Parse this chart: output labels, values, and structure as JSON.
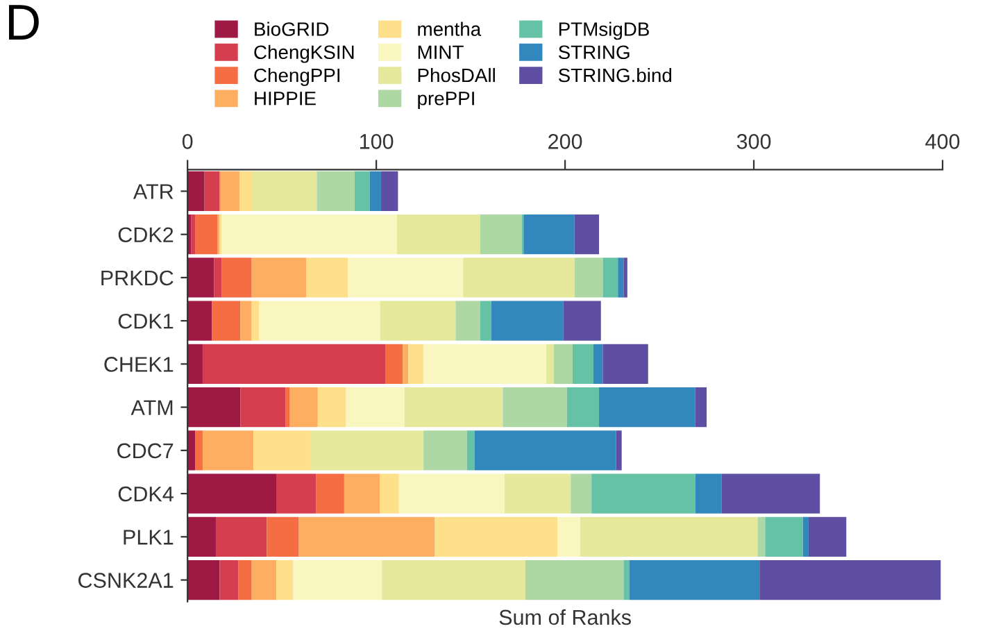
{
  "chart_data": {
    "type": "bar",
    "orientation": "horizontal",
    "stacked": true,
    "xlabel": "Sum of Ranks",
    "categories": [
      "ATR",
      "CDK2",
      "PRKDC",
      "CDK1",
      "CHEK1",
      "ATM",
      "CDC7",
      "CDK4",
      "PLK1",
      "CSNK2A1"
    ],
    "series": [
      {
        "name": "BioGRID",
        "color": "#9e1a44",
        "values": [
          9,
          2,
          14,
          13,
          8,
          28,
          4,
          47,
          15,
          17
        ]
      },
      {
        "name": "ChengKSIN",
        "color": "#d53e4f",
        "values": [
          8,
          2,
          4,
          0,
          97,
          24,
          0,
          21,
          27,
          10
        ]
      },
      {
        "name": "ChengPPI",
        "color": "#f46d43",
        "values": [
          0.5,
          12,
          16,
          15,
          9,
          2,
          4,
          15,
          17,
          7
        ]
      },
      {
        "name": "HIPPIE",
        "color": "#fdae61",
        "values": [
          10,
          1,
          29,
          6,
          3,
          15,
          27,
          19,
          72,
          13
        ]
      },
      {
        "name": "mentha",
        "color": "#fee08b",
        "values": [
          7,
          1,
          22,
          4,
          8,
          15,
          30,
          10,
          65,
          9
        ]
      },
      {
        "name": "MINT",
        "color": "#f9f6c0",
        "values": [
          0,
          93,
          61,
          64,
          65,
          31,
          0,
          56,
          12,
          47
        ]
      },
      {
        "name": "PhosDAll",
        "color": "#e6e99c",
        "values": [
          34,
          44,
          59,
          40,
          4,
          52,
          60,
          35,
          94,
          76
        ]
      },
      {
        "name": "prePPI",
        "color": "#aed8a3",
        "values": [
          20,
          22,
          15,
          13,
          10,
          34,
          23,
          11,
          4,
          52
        ]
      },
      {
        "name": "PTMsigDB",
        "color": "#66c2a5",
        "values": [
          8,
          1,
          8,
          6,
          11,
          17,
          4,
          55,
          20,
          3
        ]
      },
      {
        "name": "STRING",
        "color": "#3288bd",
        "values": [
          6,
          27,
          3,
          38,
          5,
          51,
          75,
          14,
          3,
          69
        ]
      },
      {
        "name": "STRING.bind",
        "color": "#5e4fa2",
        "values": [
          9,
          13,
          2,
          20,
          24,
          6,
          3,
          52,
          20,
          96
        ]
      }
    ],
    "xlim": [
      0,
      400
    ],
    "xticks": [
      0,
      100,
      200,
      300,
      400
    ],
    "tick_labels": "x",
    "legend": "top left",
    "grid": false,
    "annotations": [
      "D"
    ]
  }
}
